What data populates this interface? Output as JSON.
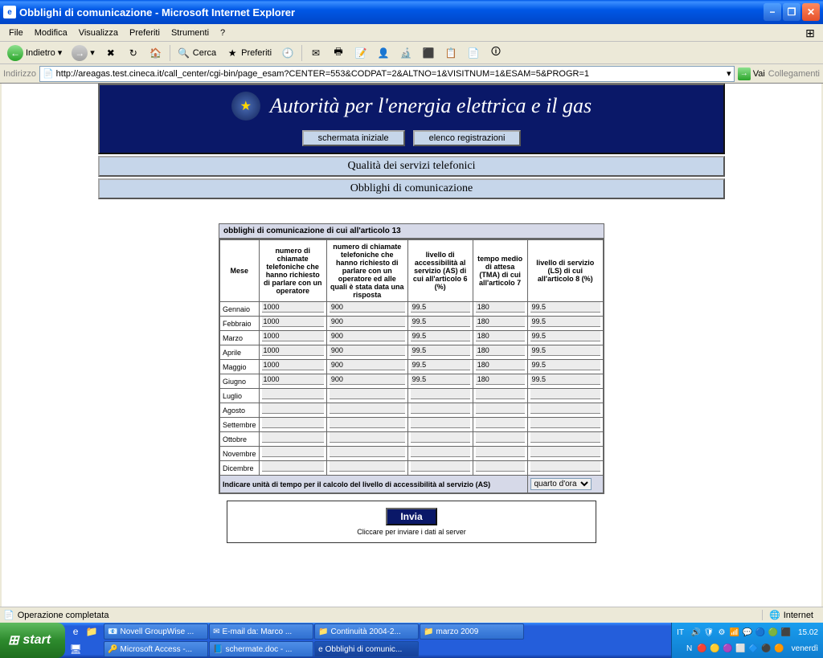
{
  "window": {
    "title": "Obblighi di comunicazione - Microsoft Internet Explorer"
  },
  "menubar": {
    "file": "File",
    "modifica": "Modifica",
    "visualizza": "Visualizza",
    "preferiti": "Preferiti",
    "strumenti": "Strumenti",
    "help": "?"
  },
  "toolbar": {
    "indietro": "Indietro",
    "cerca": "Cerca",
    "preferiti": "Preferiti"
  },
  "addressbar": {
    "label": "Indirizzo",
    "url": "http://areagas.test.cineca.it/call_center/cgi-bin/page_esam?CENTER=553&CODPAT=2&ALTNO=1&VISITNUM=1&ESAM=5&PROGR=1",
    "go": "Vai",
    "links": "Collegamenti"
  },
  "banner": {
    "title": "Autorità per l'energia elettrica e il gas",
    "btn1": "schermata iniziale",
    "btn2": "elenco registrazioni",
    "sub1": "Qualità dei servizi telefonici",
    "sub2": "Obblighi di comunicazione"
  },
  "table": {
    "caption": "obblighi di comunicazione di cui all'articolo 13",
    "headers": {
      "mese": "Mese",
      "h1": "numero di chiamate telefoniche che hanno richiesto di parlare con un operatore",
      "h2": "numero di chiamate telefoniche che hanno richiesto di parlare con un operatore ed alle quali è stata data una risposta",
      "h3": "livello di accessibilità al servizio (AS) di cui all'articolo 6 (%)",
      "h4": "tempo medio di attesa (TMA) di cui all'articolo 7",
      "h5": "livello di servizio (LS) di cui all'articolo 8 (%)"
    },
    "months": {
      "m1": "Gennaio",
      "m2": "Febbraio",
      "m3": "Marzo",
      "m4": "Aprile",
      "m5": "Maggio",
      "m6": "Giugno",
      "m7": "Luglio",
      "m8": "Agosto",
      "m9": "Settembre",
      "m10": "Ottobre",
      "m11": "Novembre",
      "m12": "Dicembre"
    },
    "data": {
      "r1c1": "1000",
      "r1c2": "900",
      "r1c3": "99.5",
      "r1c4": "180",
      "r1c5": "99.5",
      "r2c1": "1000",
      "r2c2": "900",
      "r2c3": "99.5",
      "r2c4": "180",
      "r2c5": "99.5",
      "r3c1": "1000",
      "r3c2": "900",
      "r3c3": "99.5",
      "r3c4": "180",
      "r3c5": "99.5",
      "r4c1": "1000",
      "r4c2": "900",
      "r4c3": "99.5",
      "r4c4": "180",
      "r4c5": "99.5",
      "r5c1": "1000",
      "r5c2": "900",
      "r5c3": "99.5",
      "r5c4": "180",
      "r5c5": "99.5",
      "r6c1": "1000",
      "r6c2": "900",
      "r6c3": "99.5",
      "r6c4": "180",
      "r6c5": "99.5"
    },
    "footer_label": "Indicare unità di tempo per il calcolo del livello di accessibilità al servizio (AS)",
    "footer_selected": "quarto d'ora"
  },
  "submit": {
    "button": "Invia",
    "hint": "Cliccare per inviare i dati al server"
  },
  "statusbar": {
    "text": "Operazione completata",
    "zone": "Internet"
  },
  "taskbar": {
    "start": "start",
    "lang": "IT",
    "tasks_top": {
      "t1": "Novell GroupWise ...",
      "t2": "E-mail da: Marco ...",
      "t3": "Continuità 2004-2...",
      "t4": "marzo 2009"
    },
    "tasks_bot": {
      "t1": "Microsoft Access -...",
      "t2": "schermate.doc - ...",
      "t3": "Obblighi di comunic..."
    },
    "clock_time": "15.02",
    "clock_day": "venerdì"
  },
  "colors": {
    "titlebar_blue": "#0058e6",
    "banner_navy": "#0a1868",
    "panel_blue": "#c6d6ea",
    "xp_green": "#2aa52a"
  }
}
